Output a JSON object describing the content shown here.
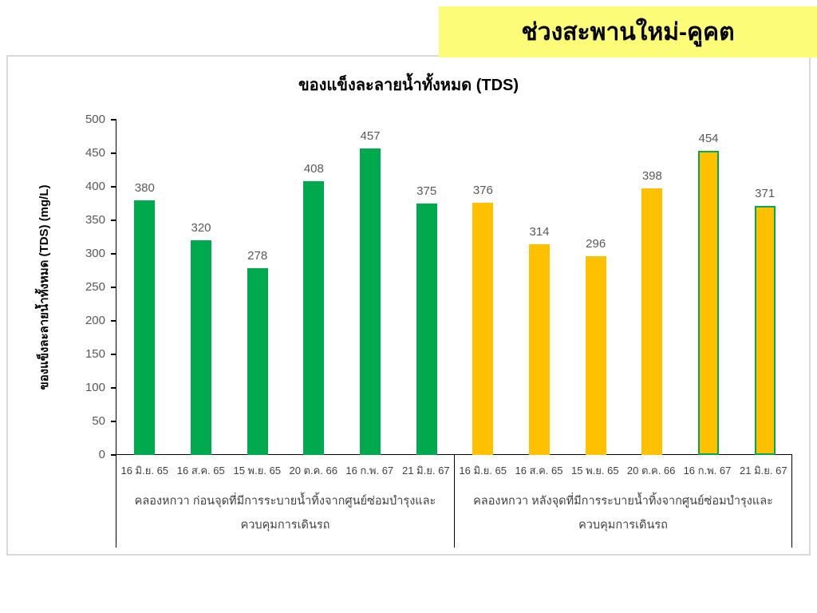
{
  "banner": {
    "title": "ช่วงสะพานใหม่-คูคต"
  },
  "colors": {
    "banner_bg": "#FCFC78",
    "green": "#00A94E",
    "gold": "#FFC000",
    "bar_border_green": "#00A94E",
    "axis_text": "#595959",
    "category_text": "#404040",
    "card_border": "#D9D9D9",
    "axis_line": "#000000"
  },
  "chart_data": {
    "type": "bar",
    "title": "ของแข็งละลายน้ำทั้งหมด (TDS)",
    "xlabel": "",
    "ylabel": "ของแข็งละลายน้ำทั้งหมด (TDS) (mg/L)",
    "ylim": [
      0,
      500
    ],
    "ytick_step": 50,
    "grid": false,
    "legend": "none",
    "data_labels": true,
    "categories": [
      "16 มิ.ย. 65",
      "16 ส.ค. 65",
      "15 พ.ย. 65",
      "20 ต.ค. 66",
      "16 ก.พ. 67",
      "21 มิ.ย. 67"
    ],
    "groups": [
      {
        "label": "คลองหกวา ก่อนจุดที่มีการระบายน้ำทิ้งจากศูนย์ซ่อมบำรุงและควบคุมการเดินรถ",
        "values": [
          380,
          320,
          278,
          408,
          457,
          375
        ],
        "bar_color": "#00A94E",
        "bar_outlined": [
          false,
          false,
          false,
          false,
          false,
          false
        ],
        "outline_color": "#00A94E"
      },
      {
        "label": "คลองหกวา หลังจุดที่มีการระบายน้ำทิ้งจากศูนย์ซ่อมบำรุงและควบคุมการเดินรถ",
        "values": [
          376,
          314,
          296,
          398,
          454,
          371
        ],
        "bar_color": "#FFC000",
        "bar_outlined": [
          false,
          false,
          false,
          false,
          true,
          true
        ],
        "outline_color": "#00A94E"
      }
    ]
  }
}
